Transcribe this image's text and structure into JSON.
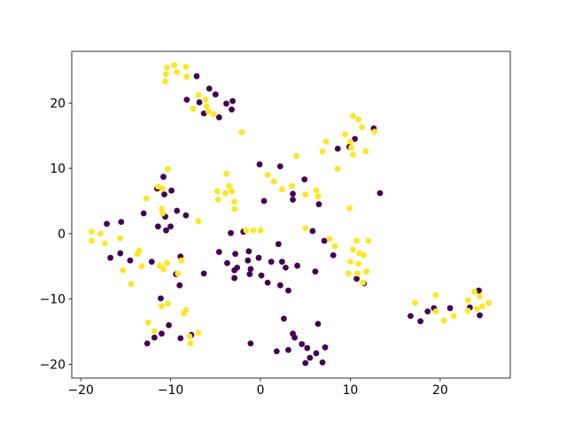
{
  "chart_data": {
    "type": "scatter",
    "xlim": [
      -21.0,
      27.8
    ],
    "ylim": [
      -22.1,
      27.9
    ],
    "xticks": [
      {
        "value": -20,
        "label": "−20"
      },
      {
        "value": -10,
        "label": "−10"
      },
      0,
      10,
      20
    ],
    "yticks": [
      {
        "value": -20,
        "label": "−20"
      },
      {
        "value": -10,
        "label": "−10"
      },
      0,
      10,
      20
    ],
    "series": [
      {
        "color": "#440154",
        "x": [
          -7.1,
          -5.7,
          -5.0,
          -8.2,
          -6.8,
          -3.8,
          -3.1,
          -3.2,
          -4.6,
          -6.3,
          12.6,
          10.5,
          8.6,
          13.3,
          9.9,
          -0.1,
          2.2,
          0.4,
          3.6,
          4.9,
          3.6,
          6.5,
          5.8,
          -3.3,
          -1.9,
          -10.8,
          -11.5,
          -9.9,
          -10.7,
          -10.6,
          -13.0,
          -9.3,
          -8.3,
          -15.5,
          -17.1,
          -11.4,
          -10.5,
          -10.0,
          -16.7,
          -15.6,
          -14.5,
          -8.9,
          -12.1,
          -9.4,
          -6.3,
          -9.0,
          -4.6,
          -3.7,
          -2.8,
          -1.3,
          -1.4,
          -0.2,
          2.0,
          1.2,
          2.4,
          2.8,
          4.1,
          -1.1,
          0.1,
          -2.9,
          -2.9,
          -1.2,
          0.8,
          2.2,
          3.1,
          -2.6,
          7.1,
          8.1,
          10.7,
          11.5,
          6.1,
          -11.1,
          -10.2,
          -11.0,
          -11.8,
          -12.6,
          -8.9,
          -7.7,
          -1.1,
          2.6,
          6.4,
          3.6,
          3.8,
          4.6,
          5.2,
          7.2,
          1.8,
          3.1,
          5.5,
          6.2,
          5.0,
          6.9,
          24.3,
          16.7,
          17.8,
          18.6,
          19.3,
          21.1,
          23.3,
          24.4
        ],
        "y": [
          24.1,
          22.2,
          21.3,
          20.5,
          20.1,
          19.9,
          20.3,
          19.0,
          17.8,
          18.4,
          16.1,
          14.5,
          13.0,
          6.2,
          13.3,
          10.6,
          10.3,
          5.0,
          6.1,
          8.3,
          5.2,
          4.5,
          0.4,
          0.1,
          0.3,
          8.7,
          6.9,
          6.6,
          6.0,
          2.6,
          3.1,
          3.5,
          2.8,
          1.8,
          1.5,
          1.1,
          0.5,
          1.1,
          -3.7,
          -3.0,
          -4.1,
          -3.5,
          -4.3,
          -6.2,
          -6.1,
          -7.9,
          -2.8,
          -4.5,
          -3.1,
          -2.7,
          -4.1,
          -3.7,
          -1.6,
          -4.3,
          -4.3,
          -5.2,
          -4.9,
          -5.4,
          -6.4,
          -5.6,
          -6.8,
          -6.2,
          -7.5,
          -7.9,
          -8.7,
          -5.2,
          -1.1,
          -3.3,
          -6.9,
          -7.6,
          -5.8,
          -9.9,
          -14.0,
          -15.3,
          -15.9,
          -16.8,
          -16.0,
          -15.5,
          -16.8,
          -13.0,
          -13.8,
          -15.3,
          -15.9,
          -16.9,
          -17.5,
          -17.4,
          -18.0,
          -17.8,
          -19.0,
          -18.3,
          -19.8,
          -19.7,
          -8.7,
          -12.6,
          -13.4,
          -11.9,
          -11.4,
          -11.4,
          -11.3,
          -12.5
        ]
      },
      {
        "color": "#fde725",
        "x": [
          -10.4,
          -9.6,
          -10.5,
          -9.3,
          -8.3,
          -10.6,
          -8.2,
          -6.9,
          -6.1,
          -6.0,
          -7.5,
          -5.8,
          -5.2,
          10.3,
          10.9,
          11.3,
          9.4,
          10.0,
          10.1,
          7.3,
          6.9,
          10.3,
          11.7,
          12.7,
          4.0,
          8.6,
          9.9,
          -2.1,
          0.8,
          1.5,
          2.4,
          3.5,
          -3.8,
          -4.8,
          -3.5,
          -3.2,
          -4.7,
          -3.9,
          -2.9,
          -2.9,
          6.2,
          6.4,
          5.0,
          -1.6,
          -0.8,
          0.0,
          -6.9,
          5.0,
          -10.3,
          -11.4,
          -10.9,
          -12.7,
          -11.0,
          -10.9,
          -18.8,
          -17.8,
          -18.8,
          -17.3,
          -15.6,
          -13.5,
          -13.7,
          -8.8,
          -10.4,
          -11.2,
          -10.8,
          -15.3,
          -13.2,
          -14.4,
          -9.2,
          7.7,
          8.3,
          10.7,
          12.0,
          10.3,
          11.0,
          11.5,
          10.0,
          10.9,
          9.8,
          10.8,
          11.8,
          11.4,
          -11.0,
          -10.3,
          -8.3,
          -12.5,
          -6.9,
          -11.8,
          -7.9,
          -7.8,
          -8.5,
          19.5,
          17.2,
          19.5,
          20.4,
          21.5,
          23.8,
          23.1,
          24.4,
          25.4,
          24.1,
          23.1,
          24.7
        ],
        "y": [
          25.4,
          25.8,
          24.4,
          24.7,
          25.5,
          23.3,
          24.0,
          21.2,
          20.5,
          19.5,
          19.1,
          18.7,
          18.3,
          18.0,
          17.5,
          16.3,
          15.2,
          14.1,
          13.2,
          14.1,
          12.6,
          12.1,
          12.6,
          15.6,
          11.9,
          9.9,
          3.9,
          15.5,
          9.0,
          8.0,
          6.8,
          7.3,
          9.2,
          6.5,
          7.3,
          6.5,
          5.2,
          6.2,
          4.9,
          3.8,
          6.6,
          5.7,
          0.8,
          0.5,
          0.5,
          0.5,
          1.9,
          6.0,
          9.9,
          7.2,
          6.9,
          5.4,
          3.8,
          3.1,
          0.3,
          0.0,
          -1.1,
          -1.5,
          -0.7,
          -2.6,
          -3.1,
          -4.1,
          -4.5,
          -4.9,
          -5.4,
          -5.6,
          -5.0,
          -7.7,
          -6.1,
          -0.8,
          -1.9,
          -1.1,
          -1.1,
          -2.4,
          -3.0,
          -3.3,
          -4.3,
          -4.6,
          -6.1,
          -6.1,
          -5.8,
          -7.5,
          -11.1,
          -10.7,
          -11.7,
          -13.6,
          -15.2,
          -14.9,
          -15.7,
          -16.8,
          -12.2,
          -9.4,
          -10.6,
          -11.9,
          -13.3,
          -12.6,
          -8.9,
          -10.2,
          -9.6,
          -10.6,
          -11.5,
          -11.8,
          -11.1
        ]
      }
    ]
  }
}
